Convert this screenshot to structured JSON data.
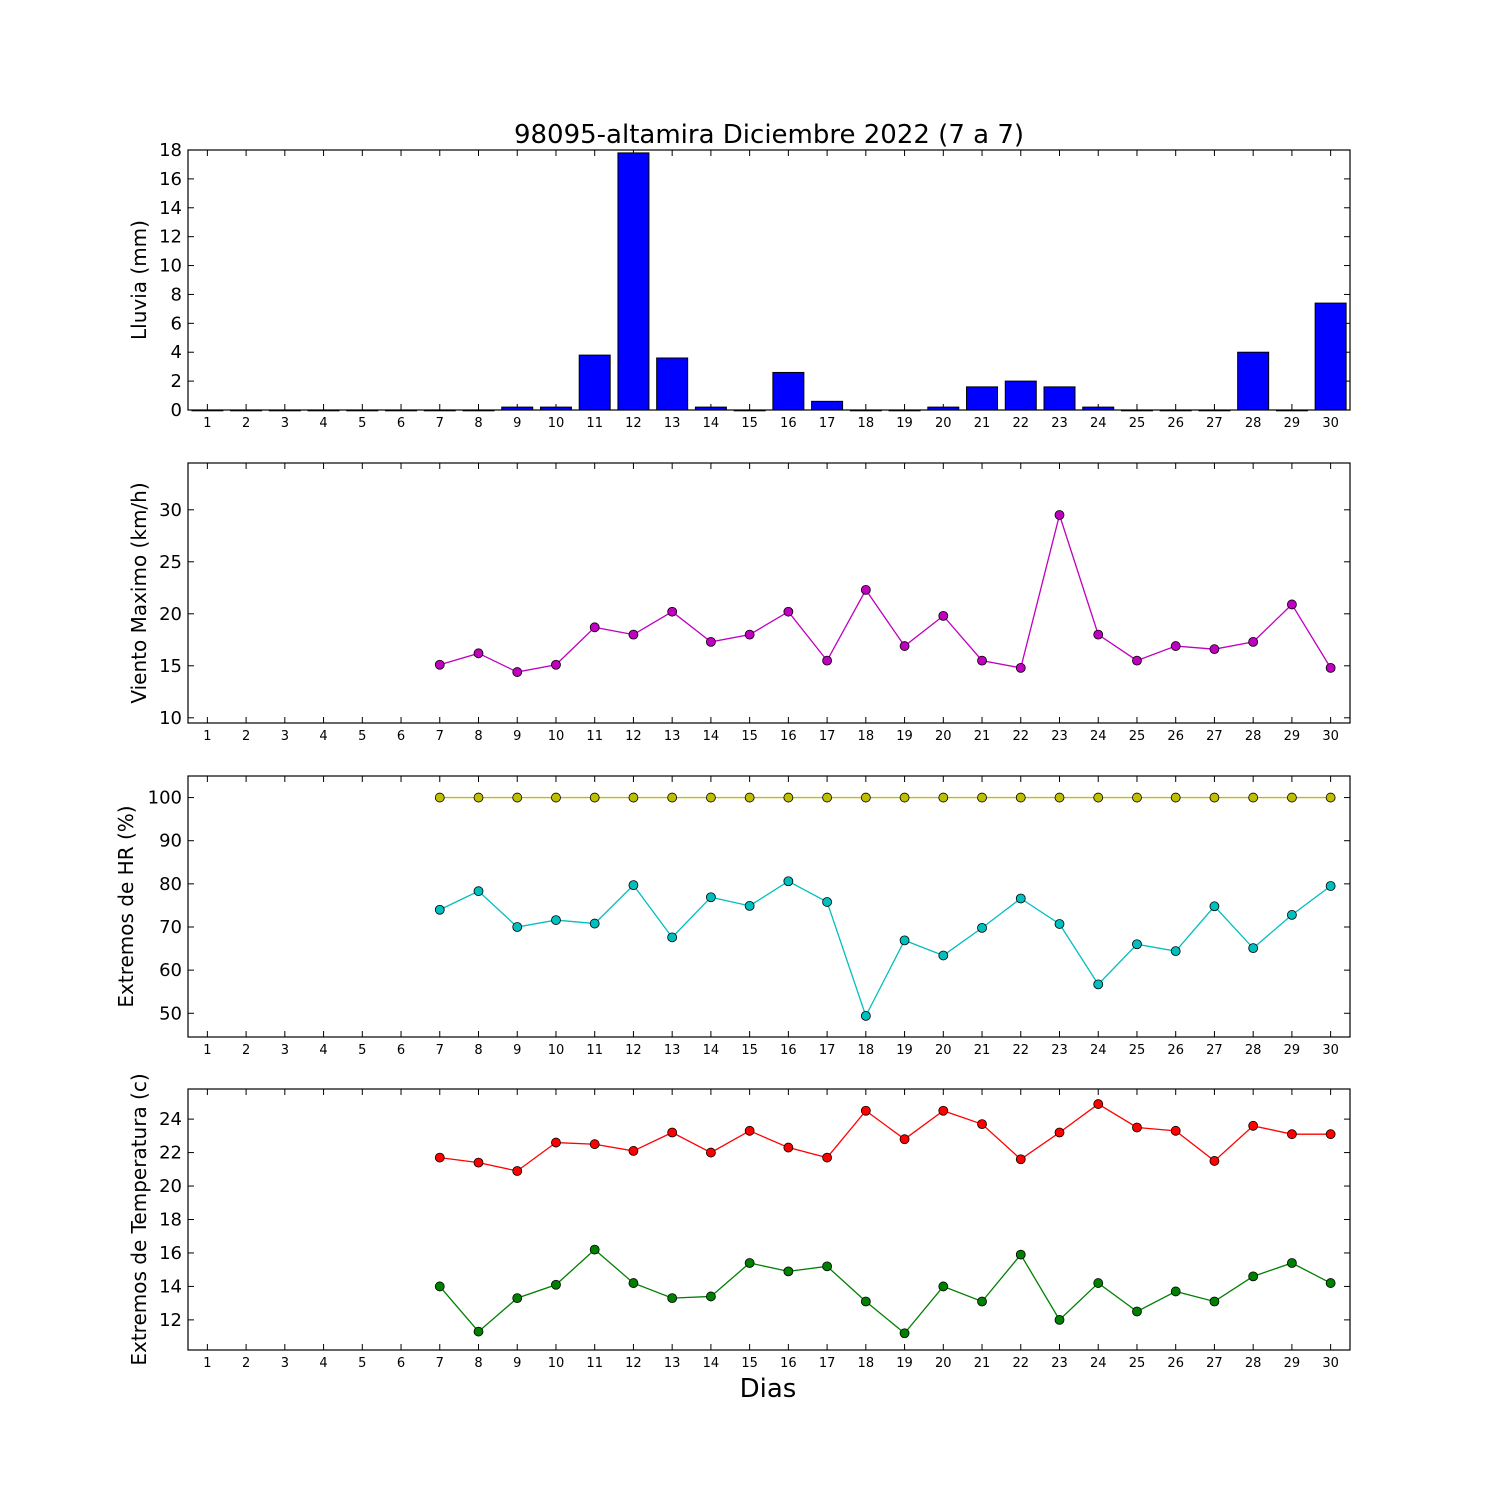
{
  "figure": {
    "title": "98095-altamira Diciembre 2022  (7 a 7)",
    "xlabel": "Dias"
  },
  "chart_data": [
    {
      "type": "bar",
      "title": "98095-altamira Diciembre 2022  (7 a 7)",
      "ylabel": "Lluvia (mm)",
      "xlabel": "",
      "categories": [
        "1",
        "2",
        "3",
        "4",
        "5",
        "6",
        "7",
        "8",
        "9",
        "10",
        "11",
        "12",
        "13",
        "14",
        "15",
        "16",
        "17",
        "18",
        "19",
        "20",
        "21",
        "22",
        "23",
        "24",
        "25",
        "26",
        "27",
        "28",
        "29",
        "30"
      ],
      "values": [
        0,
        0,
        0,
        0,
        0,
        0,
        0,
        0,
        0.2,
        0.2,
        3.8,
        17.8,
        3.6,
        0.2,
        0,
        2.6,
        0.6,
        0,
        0,
        0.2,
        1.6,
        2.0,
        1.6,
        0.2,
        0,
        0,
        0,
        4.0,
        0,
        7.4
      ],
      "ylim": [
        0,
        18
      ],
      "yticks": [
        0,
        2,
        4,
        6,
        8,
        10,
        12,
        14,
        16,
        18
      ],
      "color": "#0000ff",
      "grid": false
    },
    {
      "type": "line",
      "ylabel": "Viento Maximo (km/h)",
      "categories": [
        "1",
        "2",
        "3",
        "4",
        "5",
        "6",
        "7",
        "8",
        "9",
        "10",
        "11",
        "12",
        "13",
        "14",
        "15",
        "16",
        "17",
        "18",
        "19",
        "20",
        "21",
        "22",
        "23",
        "24",
        "25",
        "26",
        "27",
        "28",
        "29",
        "30"
      ],
      "x": [
        7,
        8,
        9,
        10,
        11,
        12,
        13,
        14,
        15,
        16,
        17,
        18,
        19,
        20,
        21,
        22,
        23,
        24,
        25,
        26,
        27,
        28,
        29,
        30
      ],
      "series": [
        {
          "values": [
            15.1,
            16.2,
            14.4,
            15.1,
            18.7,
            18.0,
            20.2,
            17.3,
            18.0,
            20.2,
            15.5,
            22.3,
            16.9,
            19.8,
            15.5,
            14.8,
            29.5,
            18.0,
            15.5,
            16.9,
            16.6,
            17.3,
            20.9,
            14.8
          ],
          "color": "#bf00bf"
        }
      ],
      "ylim": [
        9.5,
        34.5
      ],
      "yticks": [
        10,
        15,
        20,
        25,
        30
      ],
      "grid": false
    },
    {
      "type": "line",
      "ylabel": "Extremos de HR (%)",
      "categories": [
        "1",
        "2",
        "3",
        "4",
        "5",
        "6",
        "7",
        "8",
        "9",
        "10",
        "11",
        "12",
        "13",
        "14",
        "15",
        "16",
        "17",
        "18",
        "19",
        "20",
        "21",
        "22",
        "23",
        "24",
        "25",
        "26",
        "27",
        "28",
        "29",
        "30"
      ],
      "x": [
        7,
        8,
        9,
        10,
        11,
        12,
        13,
        14,
        15,
        16,
        17,
        18,
        19,
        20,
        21,
        22,
        23,
        24,
        25,
        26,
        27,
        28,
        29,
        30
      ],
      "series": [
        {
          "values": [
            100,
            100,
            100,
            100,
            100,
            100,
            100,
            100,
            100,
            100,
            100,
            100,
            100,
            100,
            100,
            100,
            100,
            100,
            100,
            100,
            100,
            100,
            100,
            100
          ],
          "color": "#bfbf00"
        },
        {
          "values": [
            74,
            78.3,
            70,
            71.6,
            70.8,
            79.7,
            67.6,
            76.9,
            74.9,
            80.6,
            75.8,
            49.4,
            66.9,
            63.4,
            69.8,
            76.6,
            70.7,
            56.7,
            66,
            64.4,
            74.8,
            65.1,
            72.8,
            79.5
          ],
          "color": "#00bfbf"
        }
      ],
      "ylim": [
        44.5,
        105
      ],
      "yticks": [
        50,
        60,
        70,
        80,
        90,
        100
      ],
      "grid": false
    },
    {
      "type": "line",
      "ylabel": "Extremos de Temperatura (c)",
      "categories": [
        "1",
        "2",
        "3",
        "4",
        "5",
        "6",
        "7",
        "8",
        "9",
        "10",
        "11",
        "12",
        "13",
        "14",
        "15",
        "16",
        "17",
        "18",
        "19",
        "20",
        "21",
        "22",
        "23",
        "24",
        "25",
        "26",
        "27",
        "28",
        "29",
        "30"
      ],
      "x": [
        7,
        8,
        9,
        10,
        11,
        12,
        13,
        14,
        15,
        16,
        17,
        18,
        19,
        20,
        21,
        22,
        23,
        24,
        25,
        26,
        27,
        28,
        29,
        30
      ],
      "series": [
        {
          "values": [
            21.7,
            21.4,
            20.9,
            22.6,
            22.5,
            22.1,
            23.2,
            22.0,
            23.3,
            22.3,
            21.7,
            24.5,
            22.8,
            24.5,
            23.7,
            21.6,
            23.2,
            24.9,
            23.5,
            23.3,
            21.5,
            23.6,
            23.1,
            23.1
          ],
          "color": "#ff0000"
        },
        {
          "values": [
            14.0,
            11.3,
            13.3,
            14.1,
            16.2,
            14.2,
            13.3,
            13.4,
            15.4,
            14.9,
            15.2,
            13.1,
            11.2,
            14.0,
            13.1,
            15.9,
            12.0,
            14.2,
            12.5,
            13.7,
            13.1,
            14.6,
            15.4,
            14.2
          ],
          "color": "#008000"
        }
      ],
      "ylim": [
        10.2,
        25.8
      ],
      "yticks": [
        12,
        14,
        16,
        18,
        20,
        22,
        24
      ],
      "grid": false
    }
  ]
}
